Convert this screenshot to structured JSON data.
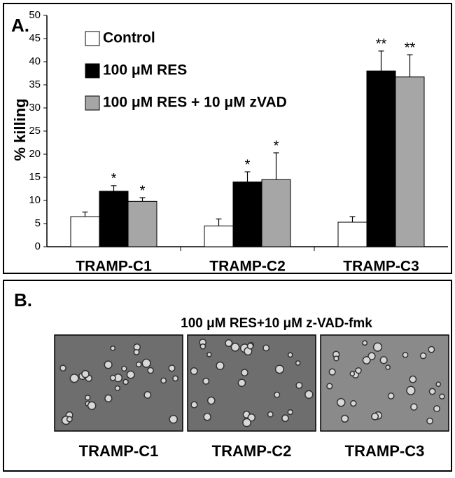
{
  "chart_data": {
    "type": "bar",
    "panel_label": "A.",
    "ylabel": "% killing",
    "categories": [
      "TRAMP-C1",
      "TRAMP-C2",
      "TRAMP-C3"
    ],
    "series": [
      {
        "name": "Control",
        "color": "#ffffff",
        "values": [
          6.5,
          4.5,
          5.3
        ],
        "errors": [
          1.0,
          1.5,
          1.2
        ]
      },
      {
        "name": "100 μM RES",
        "color": "#000000",
        "values": [
          12,
          14,
          38
        ],
        "errors": [
          1.2,
          2.2,
          4.3
        ],
        "significance": [
          "*",
          "*",
          "**"
        ]
      },
      {
        "name": "100 μM RES + 10 μM zVAD",
        "color": "#a6a6a6",
        "values": [
          9.8,
          14.5,
          36.7
        ],
        "errors": [
          0.8,
          5.8,
          4.8
        ],
        "significance": [
          "*",
          "*",
          "**"
        ]
      }
    ],
    "ylim": [
      0,
      50
    ],
    "yticks": [
      0,
      5,
      10,
      15,
      20,
      25,
      30,
      35,
      40,
      45,
      50
    ],
    "grid": false,
    "legend": "upper left"
  },
  "panel_b": {
    "panel_label": "B.",
    "title": "100 μM RES+10 μM z-VAD-fmk",
    "images": [
      "TRAMP-C1",
      "TRAMP-C2",
      "TRAMP-C3"
    ]
  }
}
